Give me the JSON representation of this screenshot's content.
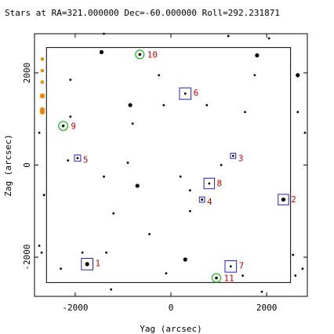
{
  "chart_data": {
    "type": "scatter",
    "title": "Stars at RA=321.000000 Dec=-60.000000 Roll=292.231871",
    "xlabel": "Yag (arcsec)",
    "ylabel": "Zag (arcsec)",
    "xlim": [
      -2850,
      2850
    ],
    "ylim": [
      -2850,
      2850
    ],
    "xticks": [
      -2000,
      0,
      2000
    ],
    "yticks": [
      -2000,
      0,
      2000
    ],
    "tick_labels": [
      "-2000",
      "0",
      "2000"
    ],
    "fov_box": {
      "yag": [
        -2600,
        2500
      ],
      "zag": [
        -2550,
        2550
      ]
    },
    "colors": {
      "star": "#000000",
      "box": "#1f1fcc",
      "circle": "#22bb22",
      "label": "#d00000",
      "acq": "#ee8800"
    },
    "stars": [
      {
        "yag": -1450,
        "zag": 2450,
        "mag": 2
      },
      {
        "yag": 1800,
        "zag": 2380,
        "mag": 2
      },
      {
        "yag": -250,
        "zag": 1950,
        "mag": 1
      },
      {
        "yag": 1750,
        "zag": 1950,
        "mag": 1
      },
      {
        "yag": 2650,
        "zag": 1950,
        "mag": 2
      },
      {
        "yag": -2100,
        "zag": 1850,
        "mag": 1
      },
      {
        "yag": -850,
        "zag": 1300,
        "mag": 2
      },
      {
        "yag": -150,
        "zag": 1300,
        "mag": 1
      },
      {
        "yag": 750,
        "zag": 1300,
        "mag": 1
      },
      {
        "yag": 1550,
        "zag": 1150,
        "mag": 1
      },
      {
        "yag": -2100,
        "zag": 1050,
        "mag": 1
      },
      {
        "yag": -800,
        "zag": 900,
        "mag": 1
      },
      {
        "yag": 2650,
        "zag": 1150,
        "mag": 1
      },
      {
        "yag": 2800,
        "zag": 700,
        "mag": 1
      },
      {
        "yag": -2750,
        "zag": 700,
        "mag": 1
      },
      {
        "yag": -2150,
        "zag": 100,
        "mag": 1
      },
      {
        "yag": -900,
        "zag": 50,
        "mag": 1
      },
      {
        "yag": 1050,
        "zag": 0,
        "mag": 1
      },
      {
        "yag": -1400,
        "zag": -250,
        "mag": 1
      },
      {
        "yag": 200,
        "zag": -250,
        "mag": 1
      },
      {
        "yag": -700,
        "zag": -450,
        "mag": 2
      },
      {
        "yag": -2650,
        "zag": -650,
        "mag": 1
      },
      {
        "yag": 400,
        "zag": -550,
        "mag": 1
      },
      {
        "yag": -1200,
        "zag": -1050,
        "mag": 1
      },
      {
        "yag": 400,
        "zag": -1000,
        "mag": 1
      },
      {
        "yag": -450,
        "zag": -1500,
        "mag": 1
      },
      {
        "yag": -2750,
        "zag": -1750,
        "mag": 1
      },
      {
        "yag": -1350,
        "zag": -1900,
        "mag": 1
      },
      {
        "yag": -1850,
        "zag": -1900,
        "mag": 1
      },
      {
        "yag": 300,
        "zag": -2050,
        "mag": 2
      },
      {
        "yag": -2700,
        "zag": -1900,
        "mag": 1
      },
      {
        "yag": 2550,
        "zag": -1950,
        "mag": 1
      },
      {
        "yag": 2750,
        "zag": -2250,
        "mag": 1
      },
      {
        "yag": -2300,
        "zag": -2250,
        "mag": 1
      },
      {
        "yag": -100,
        "zag": -2350,
        "mag": 1
      },
      {
        "yag": 1500,
        "zag": -2400,
        "mag": 1
      },
      {
        "yag": 2600,
        "zag": -2400,
        "mag": 1
      },
      {
        "yag": -1250,
        "zag": -2700,
        "mag": 1
      },
      {
        "yag": 1900,
        "zag": -2750,
        "mag": 1
      },
      {
        "yag": 1200,
        "zag": 2800,
        "mag": 1
      },
      {
        "yag": -1400,
        "zag": 2850,
        "mag": 1
      },
      {
        "yag": 2050,
        "zag": 2750,
        "mag": 1
      }
    ],
    "guide_boxes": [
      {
        "label": "1",
        "yag": -1750,
        "zag": -2150,
        "half": 120,
        "mag": 2
      },
      {
        "label": "2",
        "yag": 2350,
        "zag": -750,
        "half": 110,
        "mag": 2
      },
      {
        "label": "3",
        "yag": 1300,
        "zag": 200,
        "half": 55,
        "mag": 1
      },
      {
        "label": "4",
        "yag": 650,
        "zag": -750,
        "half": 55,
        "mag": 1
      },
      {
        "label": "5",
        "yag": -1950,
        "zag": 150,
        "half": 65,
        "mag": 1
      },
      {
        "label": "6",
        "yag": 300,
        "zag": 1550,
        "half": 120,
        "mag": 1
      },
      {
        "label": "7",
        "yag": 1250,
        "zag": -2200,
        "half": 120,
        "mag": 1
      },
      {
        "label": "8",
        "yag": 800,
        "zag": -400,
        "half": 110,
        "mag": 1
      }
    ],
    "acq_circles": [
      {
        "label": "9",
        "yag": -2250,
        "zag": 850,
        "r": 95
      },
      {
        "label": "10",
        "yag": -650,
        "zag": 2400,
        "r": 90
      },
      {
        "label": "11",
        "yag": 950,
        "zag": -2450,
        "r": 90
      }
    ],
    "side_markers": [
      {
        "zag": 2300,
        "size": 1
      },
      {
        "zag": 2050,
        "size": 1
      },
      {
        "zag": 1800,
        "size": 1
      },
      {
        "zag": 1500,
        "size": 2
      },
      {
        "zag": 1200,
        "size": 2
      },
      {
        "zag": 1150,
        "size": 2
      }
    ]
  }
}
